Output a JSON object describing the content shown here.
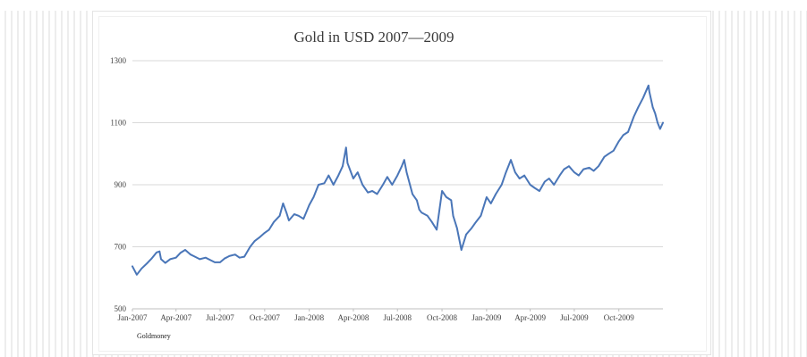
{
  "chart_data": {
    "type": "line",
    "title": "Gold in USD  2007—2009",
    "source": "Goldmoney",
    "xlabel": "",
    "ylabel": "",
    "ylim": [
      500,
      1300
    ],
    "yticks": [
      "1300",
      "1100",
      "900",
      "700",
      "500"
    ],
    "xticks": [
      "Jan-2007",
      "Apr-2007",
      "Jul-2007",
      "Oct-2007",
      "Jan-2008",
      "Apr-2008",
      "Jul-2008",
      "Oct-2008",
      "Jan-2009",
      "Apr-2009",
      "Jul-2009",
      "Oct-2009"
    ],
    "grid": true,
    "legend": "none",
    "colors": {
      "line": "#4a76b8",
      "grid": "#d9d9d9",
      "axis": "#bfbfbf"
    },
    "series": [
      {
        "x": [
          "2007-01-01",
          "2007-01-10",
          "2007-01-20",
          "2007-02-01",
          "2007-02-10",
          "2007-02-20",
          "2007-02-26",
          "2007-03-01",
          "2007-03-10",
          "2007-03-20",
          "2007-04-01",
          "2007-04-10",
          "2007-04-20",
          "2007-05-01",
          "2007-05-10",
          "2007-05-20",
          "2007-06-01",
          "2007-06-10",
          "2007-06-20",
          "2007-07-01",
          "2007-07-10",
          "2007-07-20",
          "2007-08-01",
          "2007-08-10",
          "2007-08-20",
          "2007-09-01",
          "2007-09-10",
          "2007-09-20",
          "2007-10-01",
          "2007-10-10",
          "2007-10-20",
          "2007-11-01",
          "2007-11-08",
          "2007-11-15",
          "2007-11-20",
          "2007-12-01",
          "2007-12-10",
          "2007-12-20",
          "2008-01-01",
          "2008-01-10",
          "2008-01-20",
          "2008-02-01",
          "2008-02-10",
          "2008-02-20",
          "2008-03-01",
          "2008-03-10",
          "2008-03-17",
          "2008-03-20",
          "2008-04-01",
          "2008-04-10",
          "2008-04-20",
          "2008-05-01",
          "2008-05-10",
          "2008-05-20",
          "2008-06-01",
          "2008-06-10",
          "2008-06-20",
          "2008-07-01",
          "2008-07-10",
          "2008-07-15",
          "2008-07-20",
          "2008-08-01",
          "2008-08-10",
          "2008-08-15",
          "2008-08-20",
          "2008-09-01",
          "2008-09-10",
          "2008-09-20",
          "2008-10-01",
          "2008-10-10",
          "2008-10-20",
          "2008-10-24",
          "2008-11-01",
          "2008-11-10",
          "2008-11-20",
          "2008-12-01",
          "2008-12-10",
          "2008-12-20",
          "2009-01-01",
          "2009-01-10",
          "2009-01-20",
          "2009-02-01",
          "2009-02-10",
          "2009-02-20",
          "2009-03-01",
          "2009-03-10",
          "2009-03-20",
          "2009-04-01",
          "2009-04-10",
          "2009-04-20",
          "2009-05-01",
          "2009-05-10",
          "2009-05-20",
          "2009-06-01",
          "2009-06-10",
          "2009-06-20",
          "2009-07-01",
          "2009-07-10",
          "2009-07-20",
          "2009-08-01",
          "2009-08-10",
          "2009-08-20",
          "2009-09-01",
          "2009-09-10",
          "2009-09-20",
          "2009-10-01",
          "2009-10-10",
          "2009-10-20",
          "2009-11-01",
          "2009-11-10",
          "2009-11-20",
          "2009-12-01",
          "2009-12-03",
          "2009-12-10",
          "2009-12-15",
          "2009-12-20",
          "2009-12-25",
          "2009-12-31"
        ],
        "y": [
          637,
          610,
          630,
          648,
          663,
          682,
          685,
          660,
          648,
          660,
          665,
          680,
          690,
          675,
          668,
          660,
          665,
          658,
          650,
          650,
          662,
          670,
          675,
          665,
          668,
          700,
          718,
          730,
          745,
          755,
          780,
          800,
          840,
          810,
          785,
          805,
          800,
          790,
          835,
          860,
          900,
          905,
          930,
          900,
          930,
          960,
          1020,
          970,
          920,
          940,
          900,
          875,
          880,
          870,
          900,
          925,
          900,
          930,
          960,
          980,
          940,
          870,
          850,
          820,
          810,
          800,
          780,
          755,
          880,
          860,
          850,
          800,
          760,
          690,
          740,
          760,
          780,
          800,
          860,
          840,
          870,
          900,
          940,
          980,
          940,
          920,
          930,
          900,
          890,
          880,
          910,
          920,
          900,
          930,
          950,
          960,
          940,
          930,
          950,
          955,
          945,
          960,
          990,
          1000,
          1010,
          1040,
          1060,
          1070,
          1120,
          1150,
          1180,
          1220,
          1200,
          1150,
          1130,
          1100,
          1080,
          1100
        ]
      }
    ]
  }
}
